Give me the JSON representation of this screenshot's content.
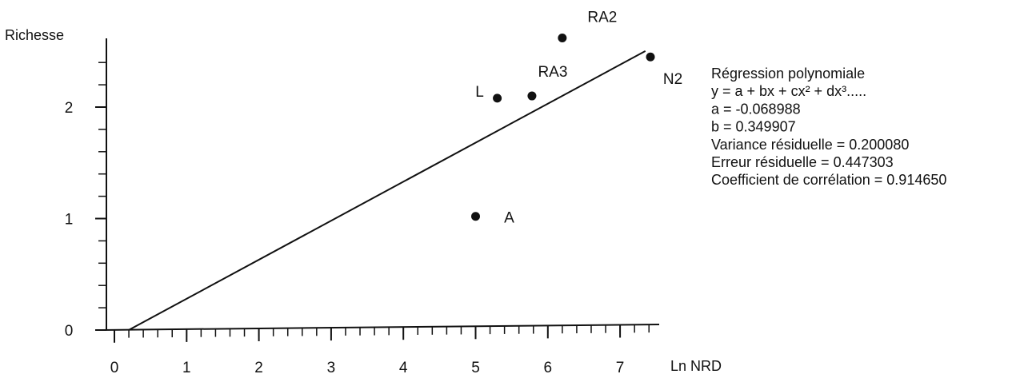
{
  "chart_data": {
    "type": "scatter",
    "title": "",
    "xlabel": "Ln NRD",
    "ylabel": "Richesse",
    "xlim": [
      0,
      7.5
    ],
    "ylim": [
      0,
      2.55
    ],
    "x_ticks": [
      0,
      1,
      2,
      3,
      4,
      5,
      6,
      7
    ],
    "x_tick_labels": [
      "0",
      "1",
      "2",
      "3",
      "4",
      "5",
      "6",
      "7"
    ],
    "y_ticks": [
      0,
      1,
      2
    ],
    "y_tick_labels": [
      "0",
      "1",
      "2"
    ],
    "points": [
      {
        "label": "L",
        "x": 5.3,
        "y": 2.08
      },
      {
        "label": "RA3",
        "x": 5.78,
        "y": 2.1
      },
      {
        "label": "RA2",
        "x": 6.2,
        "y": 2.62
      },
      {
        "label": "N2",
        "x": 7.42,
        "y": 2.45
      },
      {
        "label": "A",
        "x": 5.0,
        "y": 1.02
      }
    ],
    "regression": {
      "a": -0.068988,
      "b": 0.349907,
      "x_range": [
        0.2,
        7.35
      ]
    },
    "annotation": [
      "Régression polynomiale",
      "y = a + bx + cx² + dx³.....",
      "a = -0.068988",
      "b = 0.349907",
      "Variance résiduelle  = 0.200080",
      "Erreur résiduelle = 0.447303",
      "Coefficient de corrélation = 0.914650"
    ],
    "colors": {
      "ink": "#111111",
      "background": "#ffffff"
    }
  }
}
